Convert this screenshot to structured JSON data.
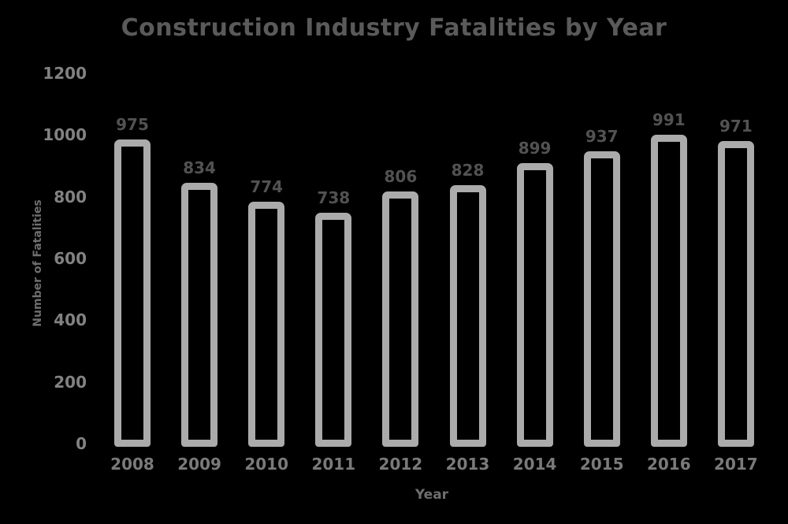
{
  "chart_data": {
    "type": "bar",
    "title": "Construction Industry Fatalities by Year",
    "xlabel": "Year",
    "ylabel": "Number of Fatalities",
    "categories": [
      "2008",
      "2009",
      "2010",
      "2011",
      "2012",
      "2013",
      "2014",
      "2015",
      "2016",
      "2017"
    ],
    "values": [
      975,
      834,
      774,
      738,
      806,
      828,
      899,
      937,
      991,
      971
    ],
    "bar_labels": [
      "975",
      "834",
      "774",
      "738",
      "806",
      "828",
      "899",
      "937",
      "991",
      "971"
    ],
    "yticks": [
      0,
      200,
      400,
      600,
      800,
      1000,
      1200
    ],
    "ylim": [
      0,
      1200
    ],
    "grid": false,
    "legend": null,
    "colors": {
      "background": "#000000",
      "bar_outline": "#ababab",
      "bar_fill": "transparent",
      "title_text": "#5a5a5a",
      "value_label_text": "#525252",
      "tick_label_text": "#828282",
      "axis_label_text": "#6e6e6e"
    }
  }
}
